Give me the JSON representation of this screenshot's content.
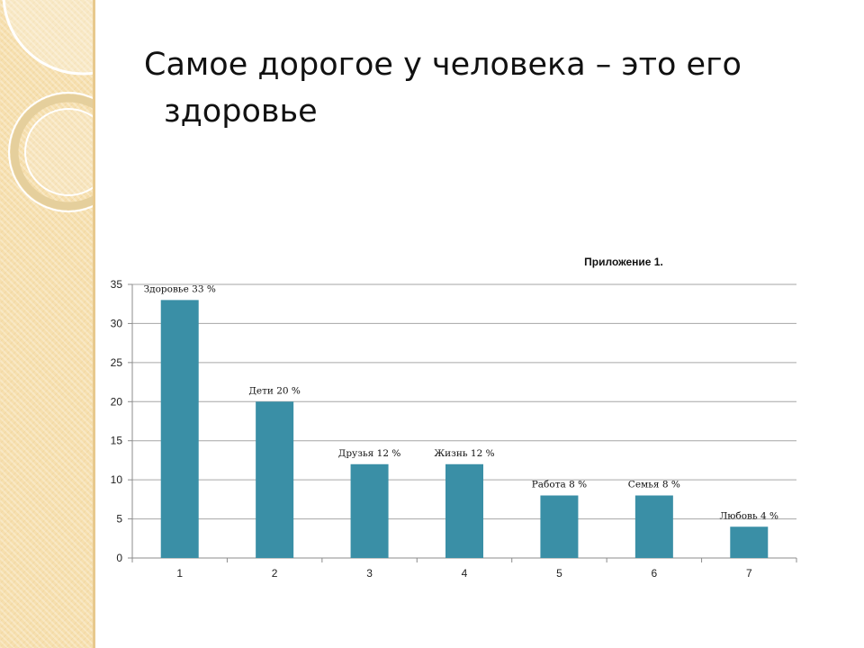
{
  "slide": {
    "title_line1": "Самое дорогое у человека – это его",
    "title_line2": "здоровье"
  },
  "colors": {
    "bar": "#3a8fa6",
    "sidebar": "#f6dfae",
    "grid": "#a6a6a6"
  },
  "chart_data": {
    "type": "bar",
    "title": "Приложение 1.",
    "categories": [
      "1",
      "2",
      "3",
      "4",
      "5",
      "6",
      "7"
    ],
    "values": [
      33,
      20,
      12,
      12,
      8,
      8,
      4
    ],
    "data_labels": [
      "Здоровье 33 %",
      "Дети 20 %",
      "Друзья 12 %",
      "Жизнь 12 %",
      "Работа 8 %",
      "Семья 8 %",
      "Любовь 4 %"
    ],
    "ylim": [
      0,
      35
    ],
    "yticks": [
      0,
      5,
      10,
      15,
      20,
      25,
      30,
      35
    ],
    "grid": true,
    "legend": "none"
  }
}
